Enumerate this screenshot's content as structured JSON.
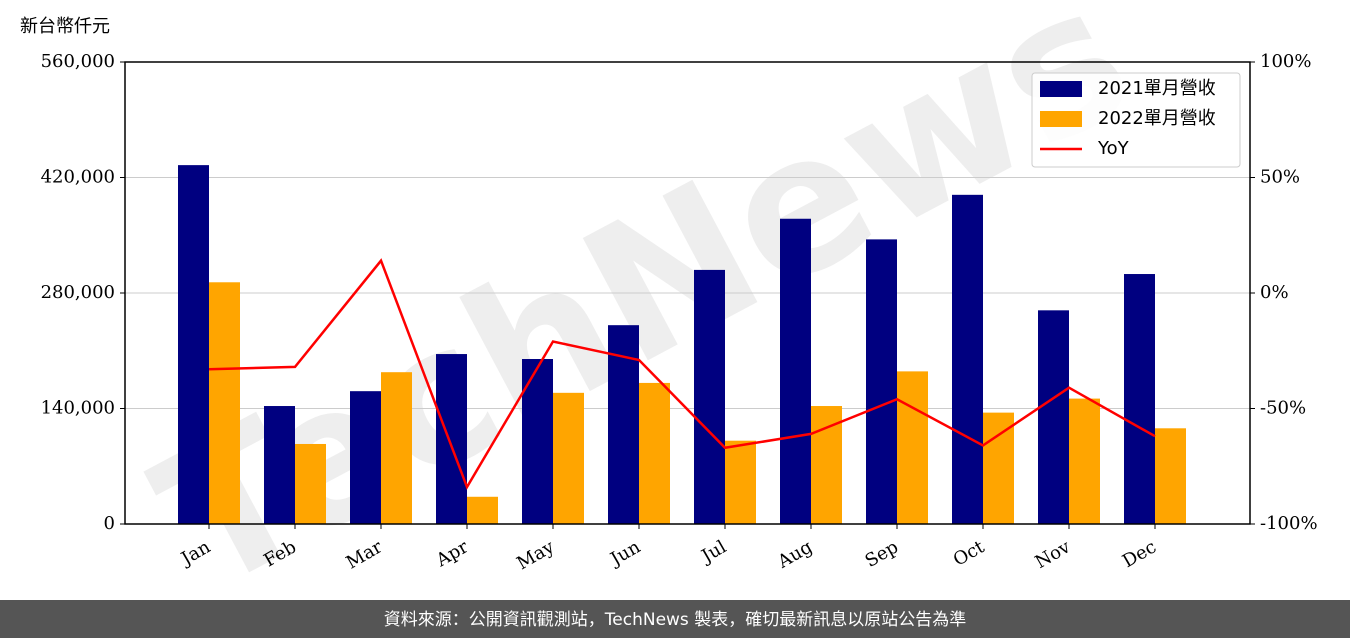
{
  "chart_data": {
    "type": "bar",
    "unit_label": "新台幣仟元",
    "watermark": "TechNews",
    "source": "資料來源：公開資訊觀測站，TechNews 製表，確切最新訊息以原站公告為準",
    "categories": [
      "Jan",
      "Feb",
      "Mar",
      "Apr",
      "May",
      "Jun",
      "Jul",
      "Aug",
      "Sep",
      "Oct",
      "Nov",
      "Dec"
    ],
    "series": [
      {
        "name": "2021單月營收",
        "color": "#000080",
        "values": [
          435000,
          143000,
          161000,
          206000,
          200000,
          241000,
          308000,
          370000,
          345000,
          399000,
          259000,
          303000
        ]
      },
      {
        "name": "2022單月營收",
        "color": "#ffa500",
        "values": [
          293000,
          97000,
          184000,
          33000,
          159000,
          171000,
          101000,
          143000,
          185000,
          135000,
          152000,
          116000
        ]
      },
      {
        "name": "YoY",
        "color": "#ff0000",
        "type": "line",
        "axis": "y2",
        "values": [
          -33,
          -32,
          14,
          -84,
          -21,
          -29,
          -67,
          -61,
          -46,
          -66,
          -41,
          -62
        ]
      }
    ],
    "ylim": [
      0,
      560000
    ],
    "yticks": [
      0,
      {
        "value": 140000,
        "label": "140,000"
      },
      {
        "value": 280000,
        "label": "280,000"
      },
      {
        "value": 420000,
        "label": "420,000"
      },
      {
        "value": 560000,
        "label": "560,000"
      }
    ],
    "y2lim": [
      -100,
      100
    ],
    "y2ticks": [
      {
        "value": -100,
        "label": "-100%"
      },
      {
        "value": -50,
        "label": "-50%"
      },
      {
        "value": 0,
        "label": "0%"
      },
      {
        "value": 50,
        "label": "50%"
      },
      {
        "value": 100,
        "label": "100%"
      }
    ],
    "grid": true,
    "legend": "upper right"
  }
}
